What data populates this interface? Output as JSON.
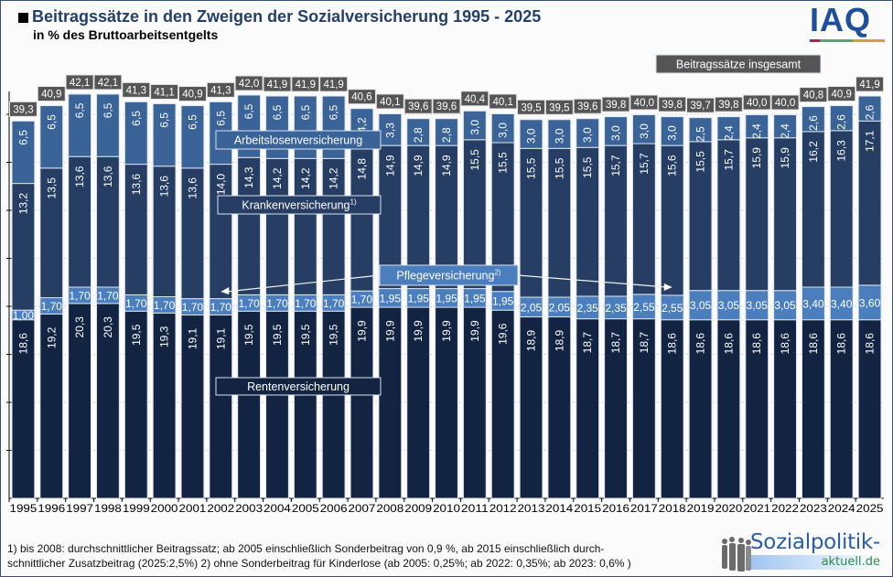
{
  "header": {
    "title": "Beitragssätze in den Zweigen der Sozialversicherung 1995 - 2025",
    "subtitle": "in % des Bruttoarbeitsentgelts"
  },
  "logos": {
    "iaq": "IAQ",
    "iaq_stripe_colors": [
      "#a3284c",
      "#5aa37c",
      "#d99a3a"
    ],
    "sozialpolitik_main": "Sozialpolitik-",
    "sozialpolitik_sub": "aktuell.de"
  },
  "footnote": {
    "line1": "1) bis 2008: durchschnittlicher Beitragssatz; ab 2005 einschließlich Sonderbeitrag von 0,9 %, ab 2015 einschließlich durch-",
    "line2": "schnittlicher Zusatzbeitrag (2025:2,5%) 2) ohne Sonderbeitrag für Kinderlose (ab 2005: 0,25%; ab 2022: 0,35%; ab 2023: 0,6% )"
  },
  "colors": {
    "renten": "#122442",
    "pflege": "#4a7ebd",
    "kranken": "#263e63",
    "arbeitslosen": "#3a6397",
    "total_label_bg": "#555555",
    "label_box_border": "#d8dde6"
  },
  "chart_data": {
    "type": "bar",
    "stacked": true,
    "title": "Beitragssätze in den Zweigen der Sozialversicherung 1995 - 2025",
    "subtitle": "in % des Bruttoarbeitsentgelts",
    "xlabel": "",
    "ylabel": "",
    "ylim": [
      0,
      45
    ],
    "grid": true,
    "categories": [
      "1995",
      "1996",
      "1997",
      "1998",
      "1999",
      "2000",
      "2001",
      "2002",
      "2003",
      "2004",
      "2005",
      "2006",
      "2007",
      "2008",
      "2009",
      "2010",
      "2011",
      "2012",
      "2013",
      "2014",
      "2015",
      "2016",
      "2017",
      "2018",
      "2019",
      "2020",
      "2021",
      "2022",
      "2023",
      "2024",
      "2025"
    ],
    "series": [
      {
        "name": "Rentenversicherung",
        "values": [
          18.6,
          19.2,
          20.3,
          20.3,
          19.5,
          19.3,
          19.1,
          19.1,
          19.5,
          19.5,
          19.5,
          19.5,
          19.9,
          19.9,
          19.9,
          19.9,
          19.9,
          19.6,
          18.9,
          18.9,
          18.7,
          18.7,
          18.7,
          18.6,
          18.6,
          18.6,
          18.6,
          18.6,
          18.6,
          18.6,
          18.6
        ],
        "labels": [
          "18,6",
          "19,2",
          "20,3",
          "20,3",
          "19,5",
          "19,3",
          "19,1",
          "19,1",
          "19,5",
          "19,5",
          "19,5",
          "19,5",
          "19,9",
          "19,9",
          "19,9",
          "19,9",
          "19,9",
          "19,6",
          "18,9",
          "18,9",
          "18,7",
          "18,7",
          "18,7",
          "18,6",
          "18,6",
          "18,6",
          "18,6",
          "18,6",
          "18,6",
          "18,6",
          "18,6"
        ]
      },
      {
        "name": "Pflegeversicherung²⁾",
        "values": [
          1.0,
          1.7,
          1.7,
          1.7,
          1.7,
          1.7,
          1.7,
          1.7,
          1.7,
          1.7,
          1.7,
          1.7,
          1.7,
          1.95,
          1.95,
          1.95,
          1.95,
          1.95,
          2.05,
          2.05,
          2.35,
          2.35,
          2.55,
          2.55,
          3.05,
          3.05,
          3.05,
          3.05,
          3.4,
          3.4,
          3.6
        ],
        "labels": [
          "1,00",
          "1,70",
          "1,70",
          "1,70",
          "1,70",
          "1,70",
          "1,70",
          "1,70",
          "1,70",
          "1,70",
          "1,70",
          "1,70",
          "1,70",
          "1,95",
          "1,95",
          "1,95",
          "1,95",
          "1,95",
          "2,05",
          "2,05",
          "2,35",
          "2,35",
          "2,55",
          "2,55",
          "3,05",
          "3,05",
          "3,05",
          "3,05",
          "3,40",
          "3,40",
          "3,60"
        ]
      },
      {
        "name": "Krankenversicherung¹⁾",
        "values": [
          13.2,
          13.5,
          13.6,
          13.6,
          13.6,
          13.6,
          13.6,
          14.0,
          14.3,
          14.2,
          14.2,
          14.2,
          14.8,
          14.9,
          14.9,
          14.9,
          15.5,
          15.5,
          15.5,
          15.5,
          15.5,
          15.7,
          15.7,
          15.6,
          15.5,
          15.7,
          15.9,
          15.9,
          16.2,
          16.3,
          17.1
        ],
        "labels": [
          "13,2",
          "13,5",
          "13,6",
          "13,6",
          "13,6",
          "13,6",
          "13,6",
          "14,0",
          "14,3",
          "14,2",
          "14,2",
          "14,2",
          "14,8",
          "14,9",
          "14,9",
          "14,9",
          "15,5",
          "15,5",
          "15,5",
          "15,5",
          "15,5",
          "15,7",
          "15,7",
          "15,6",
          "15,5",
          "15,7",
          "15,9",
          "15,9",
          "16,2",
          "16,3",
          "17,1"
        ]
      },
      {
        "name": "Arbeitslosenversicherung",
        "values": [
          6.5,
          6.5,
          6.5,
          6.5,
          6.5,
          6.5,
          6.5,
          6.5,
          6.5,
          6.5,
          6.5,
          6.5,
          4.2,
          3.3,
          2.8,
          2.8,
          3.0,
          3.0,
          3.0,
          3.0,
          3.0,
          3.0,
          3.0,
          3.0,
          2.5,
          2.4,
          2.4,
          2.4,
          2.6,
          2.6,
          2.6
        ],
        "labels": [
          "6,5",
          "6,5",
          "6,5",
          "6,5",
          "6,5",
          "6,5",
          "6,5",
          "6,5",
          "6,5",
          "6,5",
          "6,5",
          "6,5",
          "4,2",
          "3,3",
          "2,8",
          "2,8",
          "3,0",
          "3,0",
          "3,0",
          "3,0",
          "3,0",
          "3,0",
          "3,0",
          "3,0",
          "2,5",
          "2,4",
          "2,4",
          "2,4",
          "2,6",
          "2,6",
          "2,6"
        ]
      }
    ],
    "totals": {
      "name": "Beitragssätze insgesamt",
      "values": [
        39.3,
        40.9,
        42.1,
        42.1,
        41.3,
        41.1,
        40.9,
        41.3,
        42.0,
        41.9,
        41.9,
        41.9,
        40.6,
        40.1,
        39.6,
        39.6,
        40.4,
        40.1,
        39.5,
        39.5,
        39.6,
        39.8,
        40.0,
        39.8,
        39.7,
        39.8,
        40.0,
        40.0,
        40.8,
        40.9,
        41.9
      ],
      "labels": [
        "39,3",
        "40,9",
        "42,1",
        "42,1",
        "41,3",
        "41,1",
        "40,9",
        "41,3",
        "42,0",
        "41,9",
        "41,9",
        "41,9",
        "40,6",
        "40,1",
        "39,6",
        "39,6",
        "40,4",
        "40,1",
        "39,5",
        "39,5",
        "39,6",
        "39,8",
        "40,0",
        "39,8",
        "39,7",
        "39,8",
        "40,0",
        "40,0",
        "40,8",
        "40,9",
        "41,9"
      ]
    },
    "annotations": [
      {
        "text": "Beitragssätze insgesamt",
        "series": "totals"
      },
      {
        "text": "Arbeitslosenversicherung",
        "series": "Arbeitslosenversicherung"
      },
      {
        "text": "Krankenversicherung",
        "sup": "1)",
        "series": "Krankenversicherung¹⁾"
      },
      {
        "text": "Pflegeversicherung",
        "sup": "2)",
        "series": "Pflegeversicherung²⁾",
        "arrows_to": [
          "2002",
          "2018"
        ]
      },
      {
        "text": "Rentenversicherung",
        "series": "Rentenversicherung"
      }
    ],
    "legend": "inline-annotations"
  }
}
